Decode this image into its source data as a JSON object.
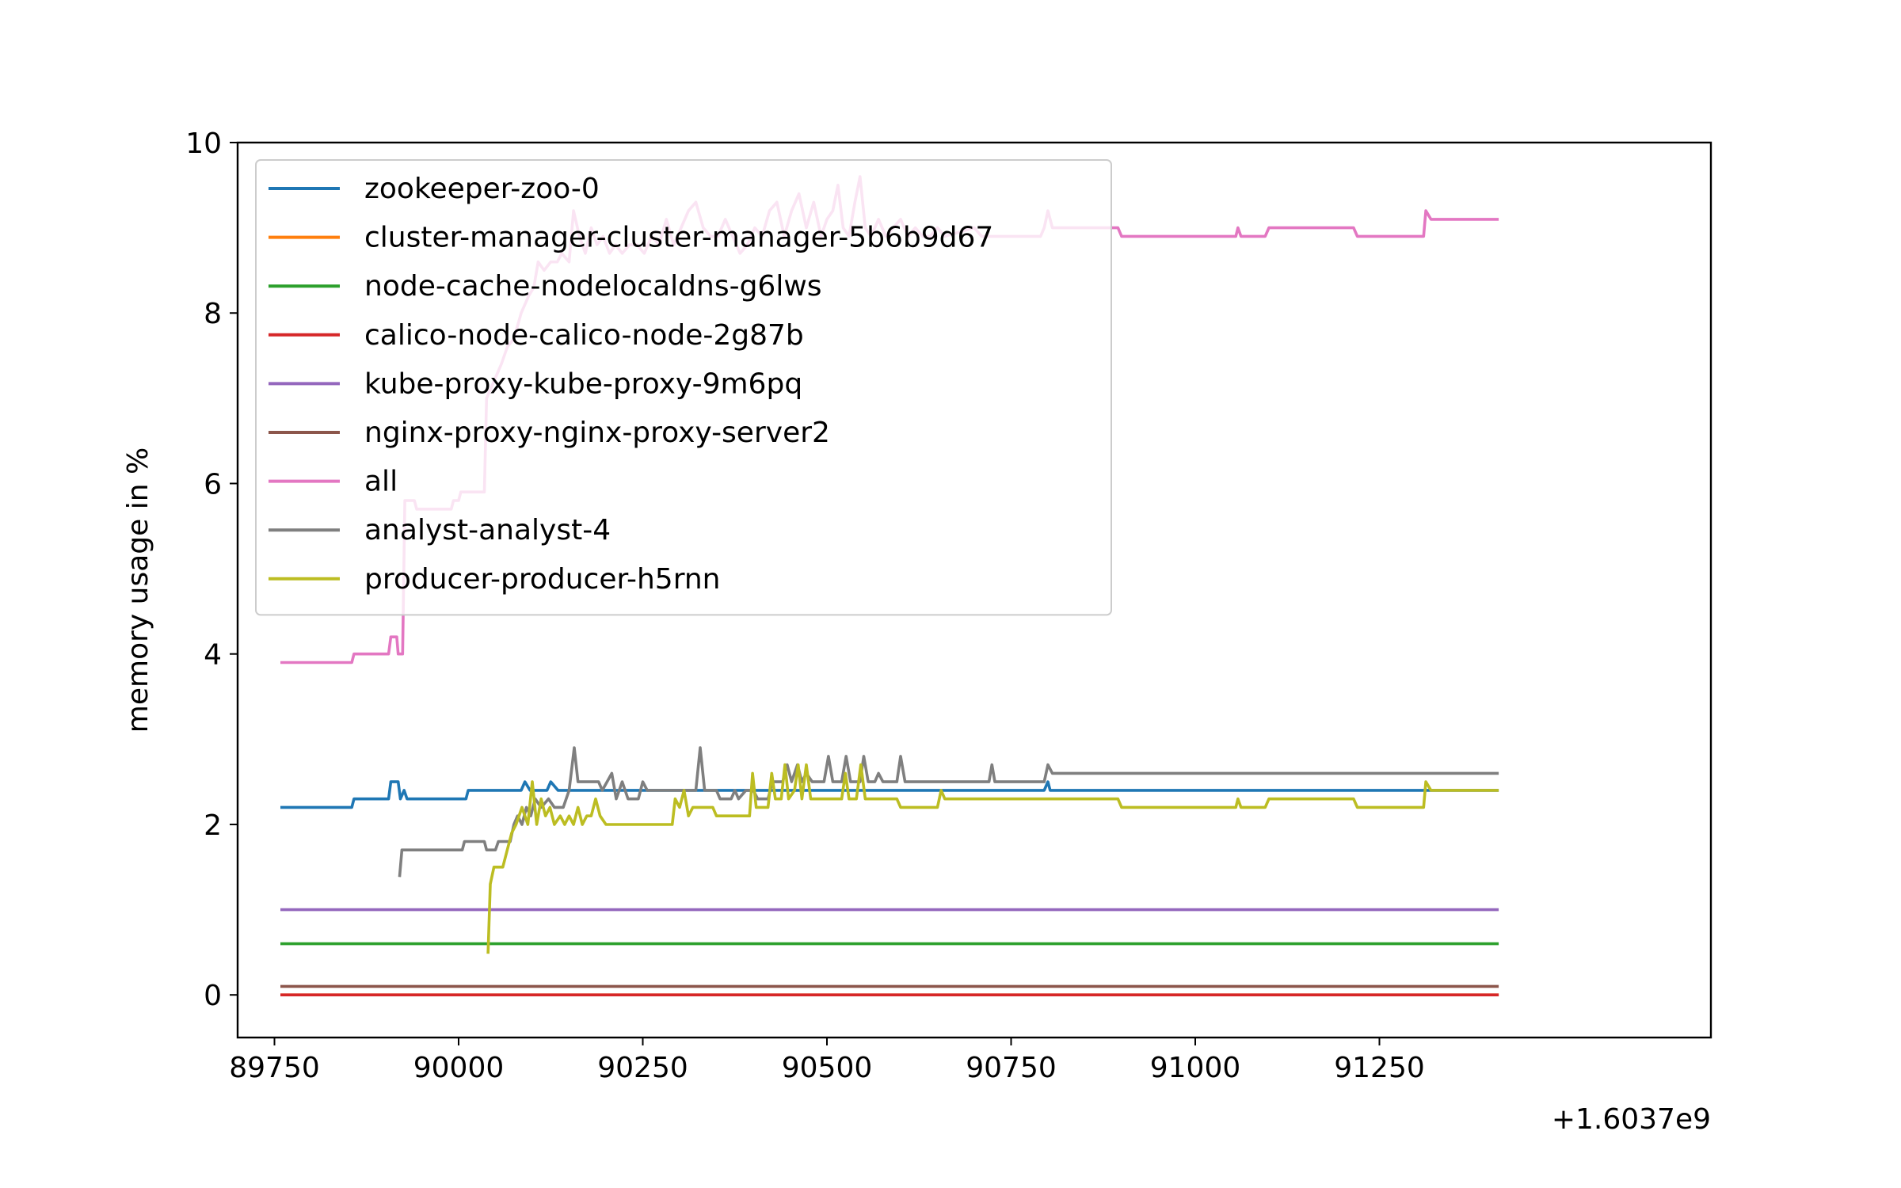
{
  "chart_data": {
    "type": "line",
    "ylabel": "memory usage in %",
    "xlabel": "",
    "x_offset_label": "+1.6037e9",
    "xlim": [
      89700,
      91700
    ],
    "ylim": [
      -0.5,
      10
    ],
    "x_ticks": [
      89750,
      90000,
      90250,
      90500,
      90750,
      91000,
      91250
    ],
    "x_tick_labels": [
      "89750",
      "90000",
      "90250",
      "90500",
      "90750",
      "91000",
      "91250"
    ],
    "y_ticks": [
      0,
      2,
      4,
      6,
      8,
      10
    ],
    "y_tick_labels": [
      "0",
      "2",
      "4",
      "6",
      "8",
      "10"
    ],
    "grid": false,
    "legend_position": "upper-left",
    "series": [
      {
        "name": "zookeeper-zoo-0",
        "color": "#1f77b4",
        "points": [
          [
            89760,
            2.2
          ],
          [
            89855,
            2.2
          ],
          [
            89858,
            2.3
          ],
          [
            89905,
            2.3
          ],
          [
            89908,
            2.5
          ],
          [
            89918,
            2.5
          ],
          [
            89921,
            2.3
          ],
          [
            89926,
            2.4
          ],
          [
            89930,
            2.3
          ],
          [
            90010,
            2.3
          ],
          [
            90013,
            2.4
          ],
          [
            90085,
            2.4
          ],
          [
            90090,
            2.5
          ],
          [
            90097,
            2.4
          ],
          [
            90120,
            2.4
          ],
          [
            90125,
            2.5
          ],
          [
            90135,
            2.4
          ],
          [
            90795,
            2.4
          ],
          [
            90800,
            2.5
          ],
          [
            90803,
            2.4
          ],
          [
            91410,
            2.4
          ]
        ]
      },
      {
        "name": "cluster-manager-cluster-manager-5b6b9d67",
        "color": "#ff7f0e",
        "points": [
          [
            89760,
            0.0
          ],
          [
            91410,
            0.0
          ]
        ]
      },
      {
        "name": "node-cache-nodelocaldns-g6lws",
        "color": "#2ca02c",
        "points": [
          [
            89760,
            0.6
          ],
          [
            91410,
            0.6
          ]
        ]
      },
      {
        "name": "calico-node-calico-node-2g87b",
        "color": "#d62728",
        "points": [
          [
            89760,
            0.0
          ],
          [
            91410,
            0.0
          ]
        ]
      },
      {
        "name": "kube-proxy-kube-proxy-9m6pq",
        "color": "#9467bd",
        "points": [
          [
            89760,
            1.0
          ],
          [
            91410,
            1.0
          ]
        ]
      },
      {
        "name": "nginx-proxy-nginx-proxy-server2",
        "color": "#8c564b",
        "points": [
          [
            89760,
            0.1
          ],
          [
            91410,
            0.1
          ]
        ]
      },
      {
        "name": "all",
        "color": "#e377c2",
        "points": [
          [
            89760,
            3.9
          ],
          [
            89855,
            3.9
          ],
          [
            89858,
            4.0
          ],
          [
            89905,
            4.0
          ],
          [
            89908,
            4.2
          ],
          [
            89916,
            4.2
          ],
          [
            89918,
            4.0
          ],
          [
            89924,
            4.0
          ],
          [
            89927,
            5.8
          ],
          [
            89940,
            5.8
          ],
          [
            89943,
            5.7
          ],
          [
            89990,
            5.7
          ],
          [
            89993,
            5.8
          ],
          [
            90000,
            5.8
          ],
          [
            90003,
            5.9
          ],
          [
            90035,
            5.9
          ],
          [
            90038,
            7.0
          ],
          [
            90058,
            7.4
          ],
          [
            90066,
            7.6
          ],
          [
            90075,
            7.7
          ],
          [
            90085,
            8.0
          ],
          [
            90095,
            8.2
          ],
          [
            90102,
            8.3
          ],
          [
            90108,
            8.6
          ],
          [
            90116,
            8.5
          ],
          [
            90125,
            8.6
          ],
          [
            90134,
            8.6
          ],
          [
            90140,
            8.7
          ],
          [
            90150,
            8.6
          ],
          [
            90156,
            9.2
          ],
          [
            90164,
            8.9
          ],
          [
            90172,
            8.7
          ],
          [
            90180,
            9.0
          ],
          [
            90188,
            8.8
          ],
          [
            90196,
            8.9
          ],
          [
            90205,
            8.7
          ],
          [
            90213,
            8.8
          ],
          [
            90222,
            8.7
          ],
          [
            90232,
            8.8
          ],
          [
            90242,
            8.8
          ],
          [
            90252,
            8.7
          ],
          [
            90262,
            8.9
          ],
          [
            90272,
            8.8
          ],
          [
            90282,
            9.1
          ],
          [
            90292,
            8.8
          ],
          [
            90302,
            9.0
          ],
          [
            90312,
            9.2
          ],
          [
            90322,
            9.3
          ],
          [
            90332,
            9.0
          ],
          [
            90342,
            8.9
          ],
          [
            90352,
            8.9
          ],
          [
            90362,
            9.1
          ],
          [
            90372,
            8.9
          ],
          [
            90382,
            8.7
          ],
          [
            90392,
            8.8
          ],
          [
            90402,
            9.0
          ],
          [
            90412,
            8.9
          ],
          [
            90422,
            9.2
          ],
          [
            90432,
            9.3
          ],
          [
            90442,
            8.9
          ],
          [
            90452,
            9.2
          ],
          [
            90462,
            9.4
          ],
          [
            90472,
            9.0
          ],
          [
            90482,
            9.3
          ],
          [
            90492,
            8.9
          ],
          [
            90500,
            9.1
          ],
          [
            90508,
            9.2
          ],
          [
            90515,
            9.5
          ],
          [
            90522,
            9.0
          ],
          [
            90530,
            8.9
          ],
          [
            90538,
            9.3
          ],
          [
            90545,
            9.6
          ],
          [
            90552,
            9.0
          ],
          [
            90560,
            8.9
          ],
          [
            90570,
            9.1
          ],
          [
            90580,
            8.9
          ],
          [
            90590,
            9.0
          ],
          [
            90600,
            9.1
          ],
          [
            90610,
            8.9
          ],
          [
            90620,
            9.0
          ],
          [
            90630,
            8.9
          ],
          [
            90640,
            8.9
          ],
          [
            90650,
            9.0
          ],
          [
            90660,
            8.9
          ],
          [
            90700,
            9.0
          ],
          [
            90710,
            8.9
          ],
          [
            90790,
            8.9
          ],
          [
            90795,
            9.0
          ],
          [
            90800,
            9.2
          ],
          [
            90806,
            9.0
          ],
          [
            90895,
            9.0
          ],
          [
            90900,
            8.9
          ],
          [
            91055,
            8.9
          ],
          [
            91058,
            9.0
          ],
          [
            91062,
            8.9
          ],
          [
            91095,
            8.9
          ],
          [
            91100,
            9.0
          ],
          [
            91215,
            9.0
          ],
          [
            91220,
            8.9
          ],
          [
            91310,
            8.9
          ],
          [
            91313,
            9.2
          ],
          [
            91320,
            9.1
          ],
          [
            91410,
            9.1
          ]
        ]
      },
      {
        "name": "analyst-analyst-4",
        "color": "#7f7f7f",
        "points": [
          [
            89920,
            1.4
          ],
          [
            89923,
            1.7
          ],
          [
            90005,
            1.7
          ],
          [
            90008,
            1.8
          ],
          [
            90035,
            1.8
          ],
          [
            90038,
            1.7
          ],
          [
            90050,
            1.7
          ],
          [
            90054,
            1.8
          ],
          [
            90070,
            1.8
          ],
          [
            90075,
            2.0
          ],
          [
            90080,
            2.1
          ],
          [
            90086,
            2.0
          ],
          [
            90092,
            2.2
          ],
          [
            90098,
            2.1
          ],
          [
            90104,
            2.3
          ],
          [
            90112,
            2.2
          ],
          [
            90122,
            2.3
          ],
          [
            90130,
            2.2
          ],
          [
            90142,
            2.2
          ],
          [
            90150,
            2.4
          ],
          [
            90157,
            2.9
          ],
          [
            90162,
            2.5
          ],
          [
            90190,
            2.5
          ],
          [
            90195,
            2.4
          ],
          [
            90208,
            2.6
          ],
          [
            90214,
            2.3
          ],
          [
            90222,
            2.5
          ],
          [
            90230,
            2.3
          ],
          [
            90244,
            2.3
          ],
          [
            90250,
            2.5
          ],
          [
            90256,
            2.4
          ],
          [
            90322,
            2.4
          ],
          [
            90328,
            2.9
          ],
          [
            90334,
            2.4
          ],
          [
            90350,
            2.4
          ],
          [
            90355,
            2.3
          ],
          [
            90370,
            2.3
          ],
          [
            90375,
            2.4
          ],
          [
            90380,
            2.3
          ],
          [
            90390,
            2.4
          ],
          [
            90400,
            2.4
          ],
          [
            90406,
            2.3
          ],
          [
            90420,
            2.3
          ],
          [
            90426,
            2.5
          ],
          [
            90440,
            2.5
          ],
          [
            90446,
            2.7
          ],
          [
            90452,
            2.5
          ],
          [
            90460,
            2.7
          ],
          [
            90466,
            2.5
          ],
          [
            90472,
            2.6
          ],
          [
            90480,
            2.5
          ],
          [
            90496,
            2.5
          ],
          [
            90502,
            2.8
          ],
          [
            90508,
            2.5
          ],
          [
            90520,
            2.5
          ],
          [
            90526,
            2.8
          ],
          [
            90532,
            2.5
          ],
          [
            90545,
            2.5
          ],
          [
            90550,
            2.8
          ],
          [
            90556,
            2.5
          ],
          [
            90565,
            2.5
          ],
          [
            90570,
            2.6
          ],
          [
            90576,
            2.5
          ],
          [
            90595,
            2.5
          ],
          [
            90600,
            2.8
          ],
          [
            90606,
            2.5
          ],
          [
            90720,
            2.5
          ],
          [
            90724,
            2.7
          ],
          [
            90728,
            2.5
          ],
          [
            90795,
            2.5
          ],
          [
            90800,
            2.7
          ],
          [
            90806,
            2.6
          ],
          [
            91410,
            2.6
          ]
        ]
      },
      {
        "name": "producer-producer-h5rnn",
        "color": "#bcbd22",
        "points": [
          [
            90040,
            0.5
          ],
          [
            90043,
            1.3
          ],
          [
            90048,
            1.5
          ],
          [
            90060,
            1.5
          ],
          [
            90066,
            1.7
          ],
          [
            90072,
            1.9
          ],
          [
            90078,
            2.0
          ],
          [
            90086,
            2.2
          ],
          [
            90094,
            2.0
          ],
          [
            90100,
            2.5
          ],
          [
            90106,
            2.0
          ],
          [
            90112,
            2.3
          ],
          [
            90118,
            2.1
          ],
          [
            90124,
            2.2
          ],
          [
            90130,
            2.0
          ],
          [
            90138,
            2.1
          ],
          [
            90144,
            2.0
          ],
          [
            90150,
            2.1
          ],
          [
            90156,
            2.0
          ],
          [
            90162,
            2.2
          ],
          [
            90168,
            2.0
          ],
          [
            90174,
            2.1
          ],
          [
            90180,
            2.1
          ],
          [
            90186,
            2.3
          ],
          [
            90192,
            2.1
          ],
          [
            90200,
            2.0
          ],
          [
            90290,
            2.0
          ],
          [
            90294,
            2.3
          ],
          [
            90300,
            2.2
          ],
          [
            90306,
            2.4
          ],
          [
            90312,
            2.1
          ],
          [
            90318,
            2.2
          ],
          [
            90345,
            2.2
          ],
          [
            90350,
            2.1
          ],
          [
            90395,
            2.1
          ],
          [
            90399,
            2.6
          ],
          [
            90404,
            2.2
          ],
          [
            90420,
            2.2
          ],
          [
            90425,
            2.6
          ],
          [
            90430,
            2.3
          ],
          [
            90438,
            2.3
          ],
          [
            90443,
            2.7
          ],
          [
            90448,
            2.3
          ],
          [
            90456,
            2.4
          ],
          [
            90461,
            2.7
          ],
          [
            90466,
            2.3
          ],
          [
            90472,
            2.7
          ],
          [
            90478,
            2.3
          ],
          [
            90520,
            2.3
          ],
          [
            90525,
            2.6
          ],
          [
            90530,
            2.3
          ],
          [
            90540,
            2.3
          ],
          [
            90546,
            2.7
          ],
          [
            90552,
            2.3
          ],
          [
            90595,
            2.3
          ],
          [
            90600,
            2.2
          ],
          [
            90650,
            2.2
          ],
          [
            90655,
            2.4
          ],
          [
            90660,
            2.3
          ],
          [
            90895,
            2.3
          ],
          [
            90900,
            2.2
          ],
          [
            91055,
            2.2
          ],
          [
            91058,
            2.3
          ],
          [
            91062,
            2.2
          ],
          [
            91095,
            2.2
          ],
          [
            91100,
            2.3
          ],
          [
            91215,
            2.3
          ],
          [
            91220,
            2.2
          ],
          [
            91310,
            2.2
          ],
          [
            91313,
            2.5
          ],
          [
            91320,
            2.4
          ],
          [
            91410,
            2.4
          ]
        ]
      }
    ]
  }
}
